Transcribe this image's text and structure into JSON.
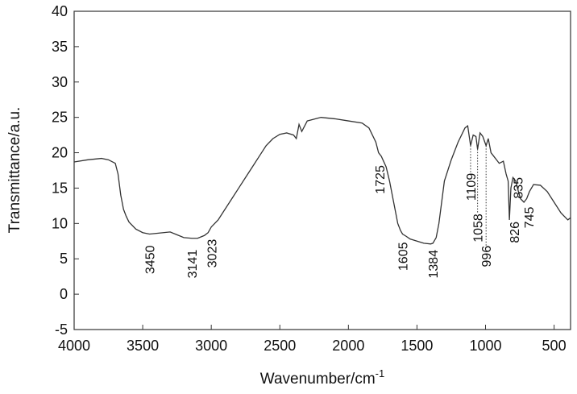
{
  "chart_data": {
    "type": "line",
    "x_label": "Wavenumber/cm",
    "x_label_sup": "-1",
    "y_label": "Transmittance/a.u.",
    "xlim": [
      4000,
      380
    ],
    "xticks": [
      4000,
      3500,
      3000,
      2500,
      2000,
      1500,
      1000,
      500
    ],
    "ylim": [
      -5,
      40
    ],
    "yticks": [
      -5,
      0,
      5,
      10,
      15,
      20,
      25,
      30,
      35,
      40
    ],
    "x": [
      4000,
      3900,
      3800,
      3750,
      3700,
      3680,
      3660,
      3640,
      3620,
      3600,
      3550,
      3500,
      3450,
      3400,
      3300,
      3250,
      3200,
      3141,
      3100,
      3050,
      3023,
      3000,
      2950,
      2900,
      2850,
      2800,
      2750,
      2700,
      2650,
      2600,
      2550,
      2500,
      2450,
      2400,
      2380,
      2360,
      2340,
      2300,
      2200,
      2100,
      2000,
      1900,
      1850,
      1800,
      1780,
      1760,
      1725,
      1700,
      1680,
      1660,
      1640,
      1620,
      1605,
      1580,
      1550,
      1500,
      1450,
      1400,
      1384,
      1360,
      1340,
      1320,
      1300,
      1250,
      1200,
      1150,
      1130,
      1109,
      1090,
      1070,
      1058,
      1040,
      1020,
      996,
      980,
      960,
      940,
      900,
      870,
      850,
      835,
      826,
      815,
      800,
      780,
      760,
      745,
      720,
      700,
      680,
      650,
      600,
      550,
      500,
      450,
      400,
      380
    ],
    "series": [
      {
        "color": "#333333",
        "values": [
          18.7,
          19.0,
          19.2,
          19.0,
          18.5,
          17,
          14,
          12,
          11,
          10.2,
          9.2,
          8.7,
          8.5,
          8.6,
          8.8,
          8.4,
          8.0,
          7.9,
          7.9,
          8.3,
          8.7,
          9.5,
          10.5,
          12,
          13.5,
          15,
          16.5,
          18,
          19.5,
          21,
          22,
          22.6,
          22.8,
          22.5,
          22.0,
          24,
          23,
          24.5,
          25,
          24.8,
          24.5,
          24.2,
          23.5,
          21.5,
          20,
          19.5,
          18.0,
          16,
          14,
          12,
          10,
          9,
          8.5,
          8.2,
          7.8,
          7.5,
          7.2,
          7.1,
          7.2,
          8,
          10,
          13,
          16,
          19,
          21.5,
          23.5,
          23.8,
          21.0,
          22.5,
          22.3,
          20.5,
          22.8,
          22.3,
          21.0,
          22,
          20,
          19.5,
          18.5,
          18.8,
          17,
          16,
          10.5,
          15,
          16.5,
          16,
          14.5,
          13.5,
          13,
          13.5,
          14.5,
          15.5,
          15.4,
          14.5,
          13,
          11.5,
          10.5,
          10.8
        ]
      }
    ],
    "annotations": [
      {
        "label": "3450",
        "x": 3450,
        "y": 8.5
      },
      {
        "label": "3141",
        "x": 3141,
        "y": 7.9
      },
      {
        "label": "3023",
        "x": 3023,
        "y": 8.7
      },
      {
        "label": "1725",
        "x": 1725,
        "y": 18.0
      },
      {
        "label": "1605",
        "x": 1605,
        "y": 8.5
      },
      {
        "label": "1384",
        "x": 1384,
        "y": 7.2
      },
      {
        "label": "1109",
        "x": 1109,
        "y": 21.0
      },
      {
        "label": "1058",
        "x": 1058,
        "y": 20.5
      },
      {
        "label": "996",
        "x": 996,
        "y": 21.0
      },
      {
        "label": "835",
        "x": 835,
        "y": 16
      },
      {
        "label": "826",
        "x": 826,
        "y": 10.5
      },
      {
        "label": "745",
        "x": 745,
        "y": 13.5
      }
    ]
  }
}
